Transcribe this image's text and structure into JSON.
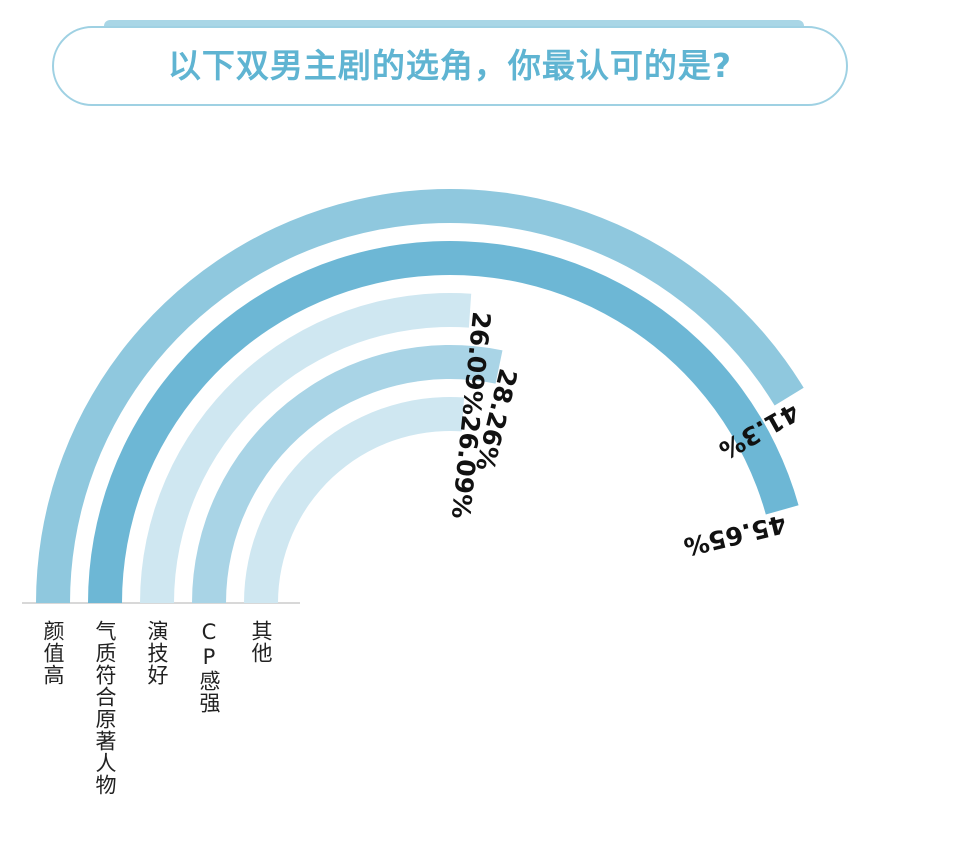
{
  "chart_data": {
    "type": "radial-bar",
    "title": "以下双男主剧的选角，你最认可的是?",
    "categories": [
      "颜值高",
      "气质符合原著人物",
      "演技好",
      "CP感强",
      "其他"
    ],
    "values": [
      41.3,
      45.65,
      26.09,
      28.26,
      26.09
    ],
    "value_labels": [
      "41.3%",
      "45.65%",
      "26.09%",
      "28.26%",
      "26.09%"
    ],
    "max_value": 50,
    "colors": [
      "#8fc8de",
      "#6db7d5",
      "#cfe7f1",
      "#a9d4e6",
      "#cfe7f1"
    ],
    "unit": "%"
  }
}
